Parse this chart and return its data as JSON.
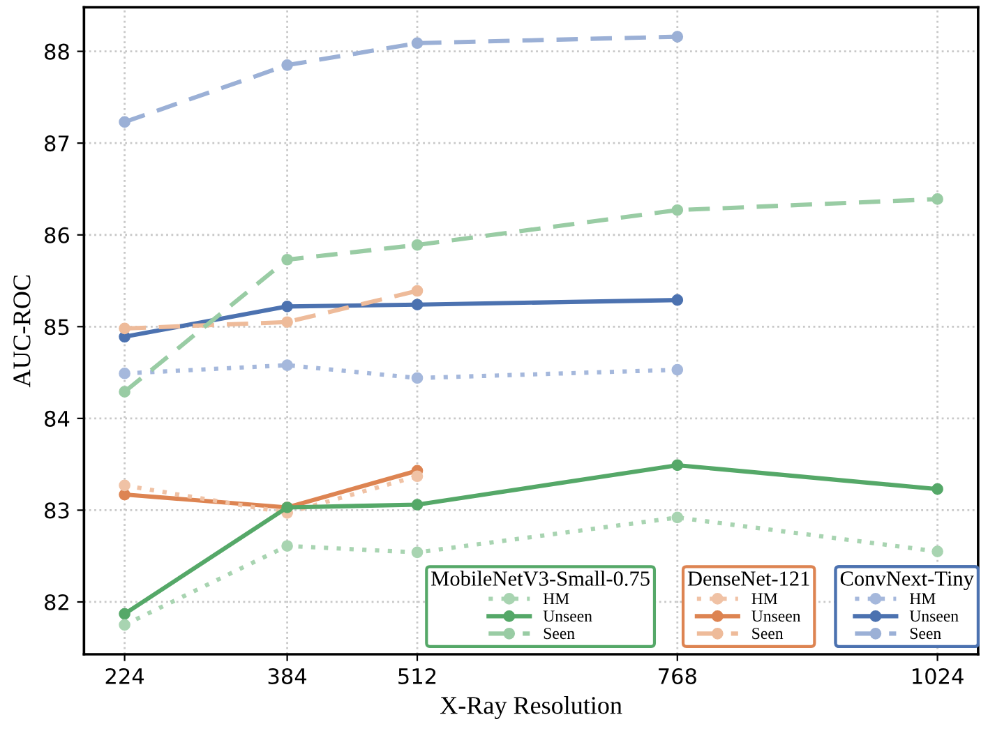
{
  "chart_data": {
    "type": "line",
    "xlabel": "X-Ray Resolution",
    "ylabel": "AUC-ROC",
    "x": [
      224,
      384,
      512,
      768,
      1024
    ],
    "xlim": [
      184,
      1064
    ],
    "xticks": [
      224,
      384,
      512,
      768,
      1024
    ],
    "ylim": [
      81.43,
      88.48
    ],
    "yticks": [
      82,
      83,
      84,
      85,
      86,
      87,
      88
    ],
    "grid": true,
    "marker": "circle",
    "legend": "bottom right",
    "legend_title": [
      "MobileNetV3-Small-0.75",
      "DenseNet-121",
      "ConvNext-Tiny"
    ],
    "series": [
      {
        "name": "HM",
        "color": "#a8d4b1",
        "line_style": "dotted",
        "values": [
          81.75,
          82.61,
          82.54,
          82.92,
          82.55
        ]
      },
      {
        "name": "Unseen",
        "color": "#55a868",
        "line_style": "solid",
        "values": [
          81.87,
          83.03,
          83.06,
          83.49,
          83.23
        ]
      },
      {
        "name": "Seen",
        "color": "#99cca4",
        "line_style": "dashed",
        "values": [
          84.29,
          85.73,
          85.89,
          86.27,
          86.39
        ]
      },
      {
        "name": "HM",
        "color": "#f0c2a5",
        "line_style": "dotted",
        "values": [
          83.27,
          82.97,
          83.37,
          null,
          null
        ]
      },
      {
        "name": "Unseen",
        "color": "#dd8452",
        "line_style": "solid",
        "values": [
          83.17,
          83.03,
          83.43,
          null,
          null
        ]
      },
      {
        "name": "Seen",
        "color": "#eebb9a",
        "line_style": "dashed",
        "values": [
          84.98,
          85.05,
          85.39,
          null,
          null
        ]
      },
      {
        "name": "HM",
        "color": "#a5b8dc",
        "line_style": "dotted",
        "values": [
          84.49,
          84.58,
          84.44,
          84.53,
          null
        ]
      },
      {
        "name": "Unseen",
        "color": "#4c72b0",
        "line_style": "solid",
        "values": [
          84.89,
          85.22,
          85.24,
          85.29,
          null
        ]
      },
      {
        "name": "Seen",
        "color": "#9bb0d6",
        "line_style": "dashed",
        "values": [
          87.23,
          87.85,
          88.09,
          88.16,
          null
        ]
      }
    ]
  }
}
